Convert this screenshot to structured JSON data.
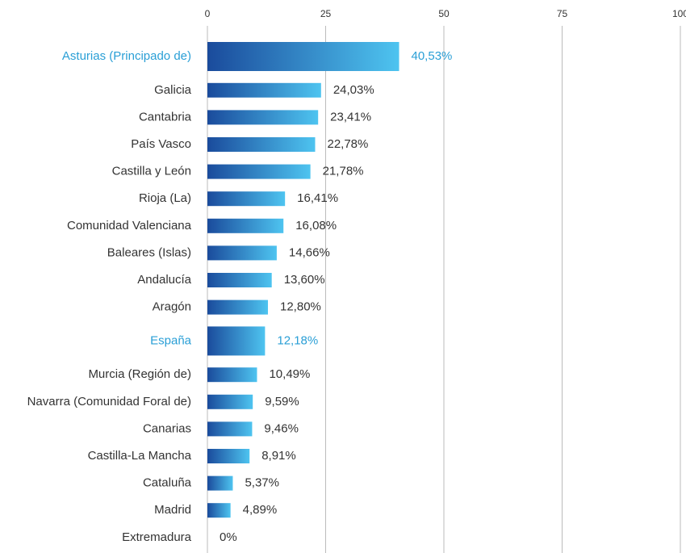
{
  "chart_data": {
    "type": "bar",
    "orientation": "horizontal",
    "categories": [
      "Asturias (Principado de)",
      "Galicia",
      "Cantabria",
      "País Vasco",
      "Castilla y León",
      "Rioja (La)",
      "Comunidad Valenciana",
      "Baleares (Islas)",
      "Andalucía",
      "Aragón",
      "España",
      "Murcia (Región de)",
      "Navarra (Comunidad Foral de)",
      "Canarias",
      "Castilla-La Mancha",
      "Cataluña",
      "Madrid",
      "Extremadura"
    ],
    "values": [
      40.53,
      24.03,
      23.41,
      22.78,
      21.78,
      16.41,
      16.08,
      14.66,
      13.6,
      12.8,
      12.18,
      10.49,
      9.59,
      9.46,
      8.91,
      5.37,
      4.89,
      0
    ],
    "value_labels": [
      "40,53%",
      "24,03%",
      "23,41%",
      "22,78%",
      "21,78%",
      "16,41%",
      "16,08%",
      "14,66%",
      "13,60%",
      "12,80%",
      "12,18%",
      "10,49%",
      "9,59%",
      "9,46%",
      "8,91%",
      "5,37%",
      "4,89%",
      "0%"
    ],
    "highlighted": [
      0,
      10
    ],
    "color_start": "#1a4b9c",
    "color_end": "#4ec4f0",
    "highlight_text_color": "#2a9fd6",
    "xlim": [
      0,
      100
    ],
    "xticks": [
      0,
      25,
      50,
      75,
      100
    ],
    "grid": true
  }
}
